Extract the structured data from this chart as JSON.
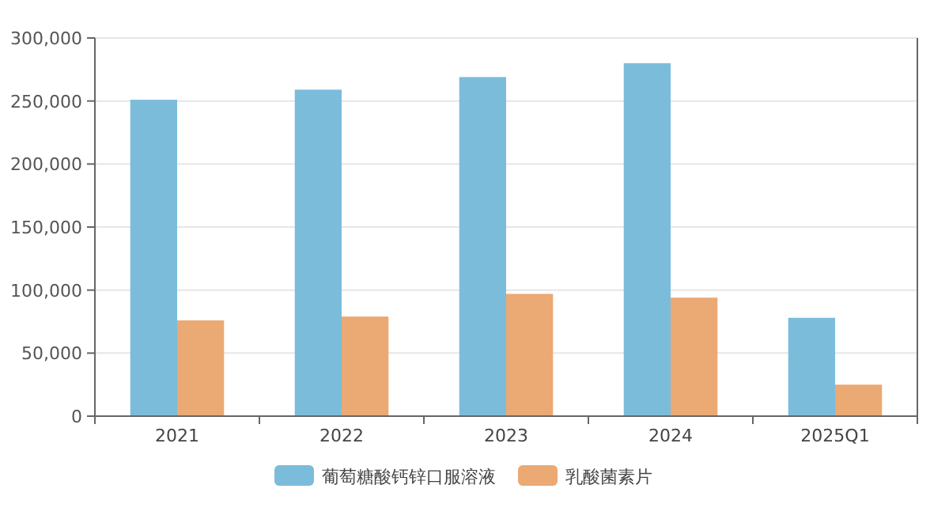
{
  "chart_data": {
    "type": "bar",
    "categories": [
      "2021",
      "2022",
      "2023",
      "2024",
      "2025Q1"
    ],
    "series": [
      {
        "name": "葡萄糖酸钙锌口服溶液",
        "color": "#7bbcdb",
        "values": [
          251000,
          259000,
          269000,
          280000,
          78000
        ]
      },
      {
        "name": "乳酸菌素片",
        "color": "#eba973",
        "values": [
          76000,
          79000,
          97000,
          94000,
          25000
        ]
      }
    ],
    "ylim": [
      0,
      300000
    ],
    "yticks": [
      0,
      {
        "value": 50000,
        "label": "50,000"
      },
      {
        "value": 100000,
        "label": "100,000"
      },
      {
        "value": 150000,
        "label": "150,000"
      },
      {
        "value": 200000,
        "label": "200,000"
      },
      {
        "value": 250000,
        "label": "250,000"
      },
      {
        "value": 300000,
        "label": "300,000"
      }
    ],
    "grid": "y",
    "legend": "bottom"
  }
}
